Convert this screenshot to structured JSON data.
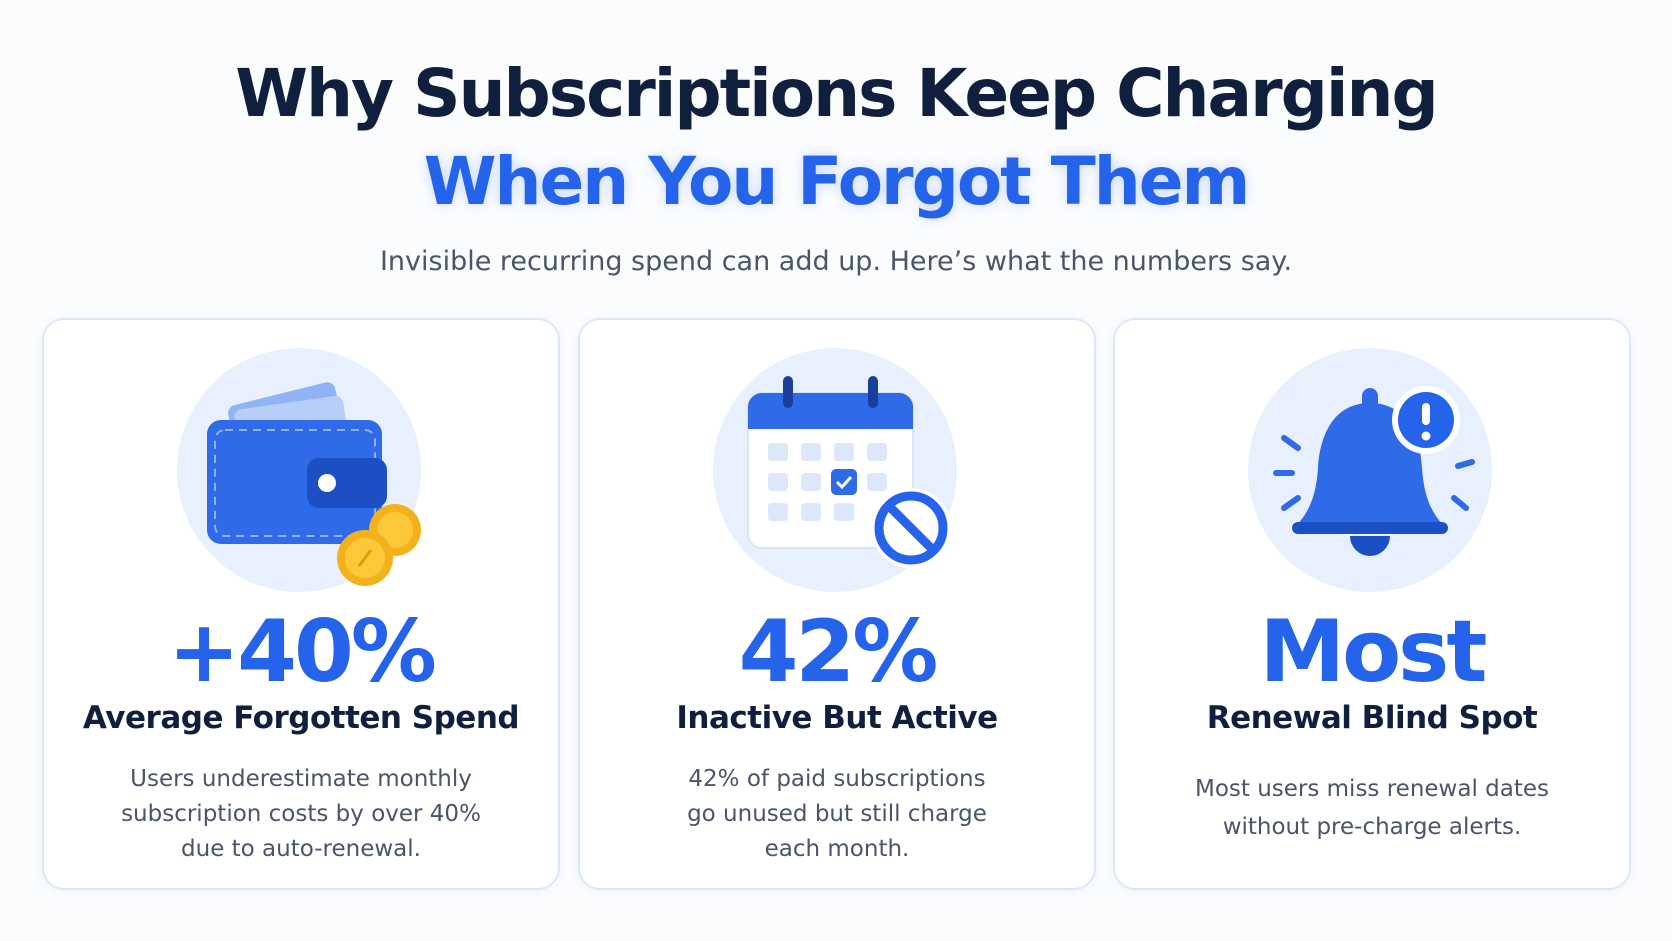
{
  "header": {
    "title_line1": "Why Subscriptions Keep Charging",
    "title_line2": "When You Forgot Them",
    "subtitle": "Invisible recurring spend can add up. Here’s what the numbers say."
  },
  "cards": [
    {
      "stat": "+40%",
      "label": "Average Forgotten Spend",
      "description": [
        "Users underestimate monthly",
        "subscription costs by over 40%",
        "due to auto-renewal."
      ]
    },
    {
      "stat": "42%",
      "label": "Inactive But Active",
      "description": [
        "42% of paid subscriptions",
        "go unused but still charge",
        "each month."
      ]
    },
    {
      "stat": "Most",
      "label": "Renewal Blind Spot",
      "description": [
        "Most users miss renewal dates",
        "without pre-charge alerts."
      ]
    }
  ]
}
